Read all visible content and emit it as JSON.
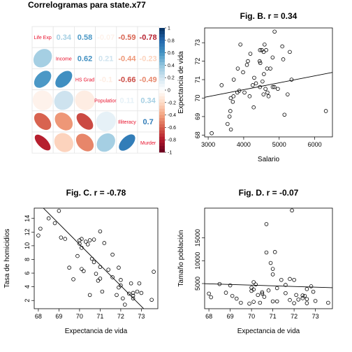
{
  "chart_data": [
    {
      "type": "heatmap",
      "title": "Correlogramas para state.x77",
      "variables": [
        "Life Exp",
        "Income",
        "HS Grad",
        "Population",
        "Illiteracy",
        "Murder"
      ],
      "matrix": [
        [
          1,
          0.34,
          0.58,
          -0.07,
          -0.59,
          -0.78
        ],
        [
          0.34,
          1,
          0.62,
          0.21,
          -0.44,
          -0.23
        ],
        [
          0.58,
          0.62,
          1,
          -0.1,
          -0.66,
          -0.49
        ],
        [
          -0.07,
          0.21,
          -0.1,
          1,
          0.11,
          0.34
        ],
        [
          -0.59,
          -0.44,
          -0.66,
          0.11,
          1,
          0.7
        ],
        [
          -0.78,
          -0.23,
          -0.49,
          0.34,
          0.7,
          1
        ]
      ],
      "upper_labels": [
        [
          "0.34",
          "0.58",
          "-0.07",
          "-0.59",
          "-0.78"
        ],
        [
          "0.62",
          "0.21",
          "-0.44",
          "-0.23"
        ],
        [
          "-0.1",
          "-0.66",
          "-0.49"
        ],
        [
          "0.11",
          "0.34"
        ],
        [
          "0.7"
        ]
      ],
      "colorbar_ticks": [
        "1",
        "0.8",
        "0.6",
        "0.4",
        "0.2",
        "0",
        "-0.2",
        "-0.4",
        "-0.6",
        "-0.8",
        "-1"
      ],
      "colorbar_range": [
        -1,
        1
      ],
      "colors": {
        "positive": "#2166ac",
        "neutral": "#ffffff",
        "negative": "#b2182b",
        "label_text": "#e8102b"
      }
    },
    {
      "type": "scatter",
      "title": "Fig. B. r = 0.34",
      "xlabel": "Salario",
      "ylabel": "Expectancia de vida",
      "xlim": [
        2900,
        6500
      ],
      "ylim": [
        67.9,
        73.8
      ],
      "xticks": [
        "3000",
        "4000",
        "5000",
        "6000"
      ],
      "yticks": [
        "68",
        "69",
        "70",
        "71",
        "72",
        "73"
      ],
      "x": [
        3098,
        3378,
        3545,
        3601,
        3624,
        3635,
        3640,
        3694,
        3712,
        3720,
        3821,
        3834,
        3875,
        3907,
        3983,
        4022,
        4091,
        4119,
        4167,
        4188,
        4254,
        4281,
        4296,
        4347,
        4449,
        4458,
        4460,
        4468,
        4510,
        4530,
        4558,
        4563,
        4569,
        4588,
        4614,
        4633,
        4660,
        4669,
        4701,
        4751,
        4815,
        4818,
        4864,
        4870,
        4963,
        5087,
        5114,
        5149,
        5237,
        5299,
        5348,
        6315
      ],
      "y": [
        68.1,
        70.7,
        68.6,
        69.0,
        69.3,
        70.0,
        68.3,
        69.8,
        70.1,
        71.0,
        70.3,
        71.6,
        70.4,
        72.9,
        71.4,
        70.3,
        71.8,
        72.0,
        70.1,
        72.4,
        70.7,
        69.5,
        71.1,
        70.8,
        72.0,
        70.6,
        72.6,
        71.9,
        72.6,
        70.9,
        70.2,
        72.5,
        71.3,
        72.9,
        70.5,
        72.6,
        71.6,
        70.3,
        70.1,
        71.6,
        72.2,
        70.6,
        70.6,
        73.6,
        70.5,
        72.8,
        72.1,
        69.1,
        70.2,
        72.5,
        71.0,
        69.3
      ],
      "fit": {
        "intercept": 68.96,
        "slope": 0.000374
      }
    },
    {
      "type": "scatter",
      "title": "Fig. C. r = -0.78",
      "xlabel": "Expectancia de vida",
      "ylabel": "Tasa de homicidios",
      "xlim": [
        67.8,
        73.8
      ],
      "ylim": [
        0.8,
        15.5
      ],
      "xticks": [
        "68",
        "69",
        "70",
        "71",
        "72",
        "73"
      ],
      "yticks": [
        "2",
        "4",
        "6",
        "8",
        "10",
        "12",
        "14"
      ],
      "x": [
        68.0,
        68.1,
        68.5,
        68.8,
        69.0,
        69.1,
        69.3,
        69.5,
        70.0,
        70.0,
        70.1,
        70.1,
        70.2,
        70.3,
        70.4,
        70.5,
        70.6,
        70.7,
        70.7,
        70.8,
        70.9,
        71.0,
        71.0,
        71.0,
        71.1,
        71.2,
        71.4,
        71.6,
        71.6,
        71.8,
        71.9,
        72.0,
        72.0,
        72.1,
        72.2,
        72.4,
        72.5,
        72.6,
        72.6,
        72.6,
        72.8,
        72.9,
        73.0,
        73.6,
        70.1,
        69.9,
        70.5,
        69.7,
        71.9,
        73.5
      ],
      "y": [
        11.5,
        12.5,
        14.0,
        13.3,
        15.1,
        11.2,
        11.0,
        6.8,
        10.3,
        10.8,
        9.7,
        11.0,
        6.3,
        10.6,
        10.2,
        10.8,
        8.1,
        10.9,
        7.6,
        5.9,
        4.9,
        12.1,
        6.9,
        5.2,
        3.3,
        10.4,
        6.5,
        5.4,
        8.7,
        2.8,
        6.8,
        5.0,
        4.2,
        2.3,
        1.4,
        3.0,
        4.5,
        2.7,
        3.1,
        2.3,
        3.3,
        4.5,
        3.1,
        6.2,
        6.6,
        8.5,
        2.8,
        5.1,
        3.9,
        2.1
      ],
      "fit": {
        "intercept": 221.6,
        "slope": -3.02
      }
    },
    {
      "type": "scatter",
      "title": "Fig. D. r = -0.07",
      "xlabel": "Expectancia de vida",
      "ylabel": "Tamaño población",
      "xlim": [
        67.8,
        73.8
      ],
      "ylim": [
        -500,
        21500
      ],
      "xticks": [
        "68",
        "69",
        "70",
        "71",
        "72",
        "73"
      ],
      "yticks": [
        "5000",
        "10000",
        "15000"
      ],
      "x": [
        68.0,
        68.1,
        68.5,
        68.8,
        69.0,
        69.1,
        69.3,
        69.5,
        70.0,
        70.0,
        70.1,
        70.1,
        70.2,
        70.3,
        70.4,
        70.5,
        70.6,
        70.7,
        70.7,
        70.8,
        70.9,
        71.0,
        71.0,
        71.0,
        71.1,
        71.2,
        71.4,
        71.6,
        71.6,
        71.8,
        71.9,
        72.0,
        72.0,
        72.1,
        72.2,
        72.4,
        72.5,
        72.6,
        72.6,
        72.6,
        72.8,
        72.9,
        73.0,
        73.6,
        70.1,
        69.9,
        70.5,
        71.8,
        72.4,
        71.2
      ],
      "y": [
        2800,
        2000,
        4900,
        3000,
        4600,
        2300,
        1700,
        800,
        3400,
        4100,
        3700,
        5300,
        4800,
        2500,
        800,
        3100,
        2100,
        18000,
        11800,
        3500,
        9500,
        7000,
        8200,
        1100,
        11900,
        4000,
        5800,
        2900,
        4700,
        1400,
        21000,
        700,
        5800,
        2500,
        1500,
        2400,
        2300,
        3800,
        700,
        1600,
        4400,
        3200,
        1200,
        800,
        1000,
        600,
        2800,
        6000,
        1800,
        1100
      ],
      "fit": {
        "intercept": 14800,
        "slope": -145
      }
    }
  ]
}
